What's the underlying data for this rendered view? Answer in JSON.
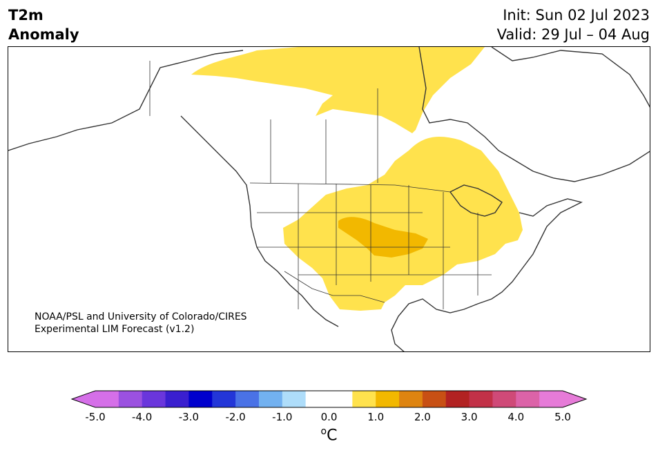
{
  "header": {
    "title_line1": "T2m",
    "title_line2": "Anomaly",
    "init": "Init: Sun 02 Jul 2023",
    "valid": "Valid: 29 Jul – 04 Aug"
  },
  "credit": {
    "line1": "NOAA/PSL and University of Colorado/CIRES",
    "line2": "Experimental LIM Forecast (v1.2)"
  },
  "colorbar": {
    "unit_sup": "o",
    "unit": "C",
    "tick_labels": [
      "-5.0",
      "-4.0",
      "-3.0",
      "-2.0",
      "-1.0",
      "0.0",
      "1.0",
      "2.0",
      "3.0",
      "4.0",
      "5.0"
    ],
    "levels": [
      -5.0,
      -4.5,
      -4.0,
      -3.5,
      -3.0,
      -2.5,
      -2.0,
      -1.5,
      -1.0,
      -0.5,
      0.5,
      1.0,
      1.5,
      2.0,
      2.5,
      3.0,
      3.5,
      4.0,
      4.5,
      5.0
    ],
    "colors": [
      "#d56fe8",
      "#9b51e0",
      "#6a36dc",
      "#3a1fcf",
      "#0000cd",
      "#2336d8",
      "#4a72e6",
      "#72b1f0",
      "#aeddfa",
      "#ffffff",
      "#ffe24d",
      "#f2b800",
      "#de8410",
      "#c85014",
      "#b22222",
      "#c23148",
      "#cf4a78",
      "#dc63a8",
      "#e67bd8"
    ],
    "extend_low_color": "#d56fe8",
    "extend_high_color": "#e67bd8"
  },
  "map": {
    "region": "North America",
    "anomaly_colors": {
      "weak_warm": "#ffe24d",
      "moderate_warm": "#f2b800"
    }
  }
}
